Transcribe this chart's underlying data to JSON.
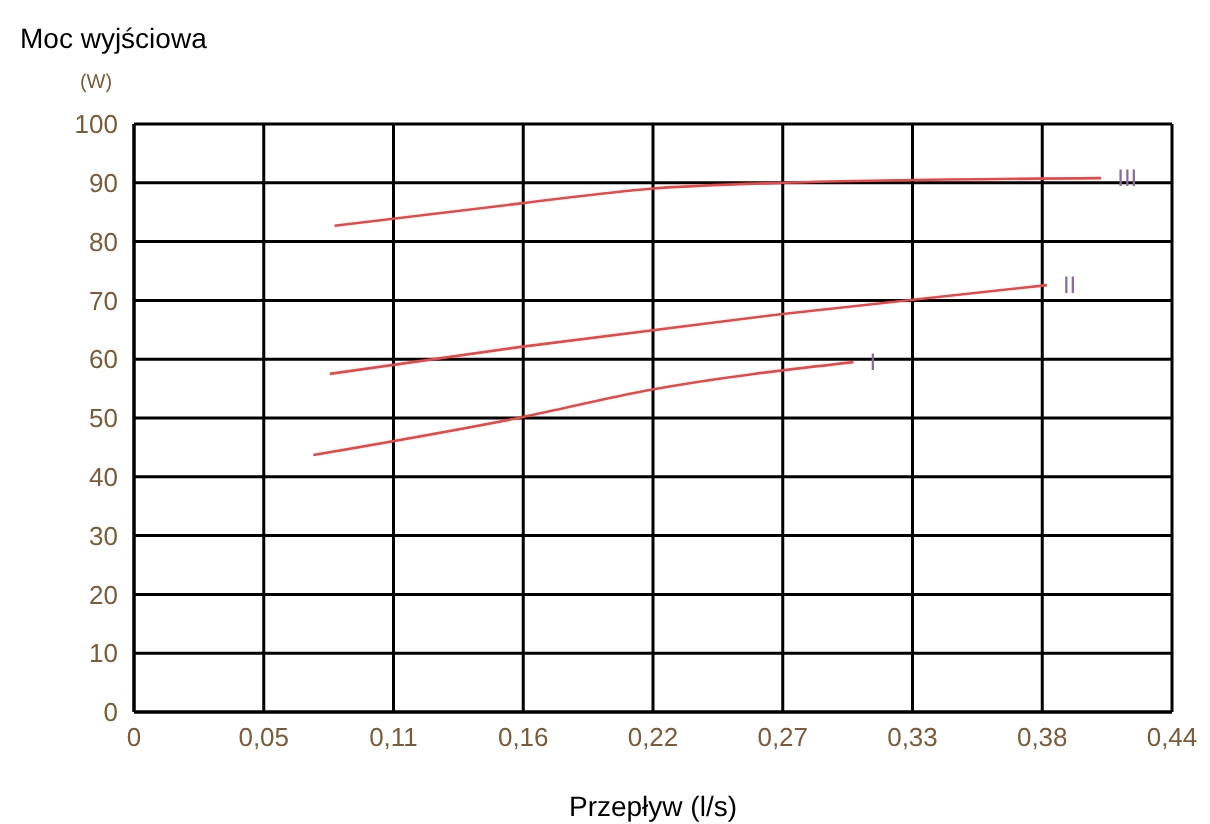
{
  "chart_data": {
    "type": "line",
    "xlabel": "Przepływ (l/s)",
    "ylabel": "Moc wyjściowa\n(W)",
    "xlim": [
      0,
      0.44
    ],
    "ylim": [
      0,
      100
    ],
    "xticks": [
      0,
      {
        "value": 0.055,
        "label": "0,05"
      },
      {
        "value": 0.11,
        "label": "0,11"
      },
      {
        "value": 0.165,
        "label": "0,16"
      },
      {
        "value": 0.22,
        "label": "0,22"
      },
      {
        "value": 0.275,
        "label": "0,27"
      },
      {
        "value": 0.33,
        "label": "0,33"
      },
      {
        "value": 0.385,
        "label": "0,38"
      },
      {
        "value": 0.44,
        "label": "0,44"
      }
    ],
    "yticks": [
      0,
      10,
      20,
      30,
      40,
      50,
      60,
      70,
      80,
      90,
      100
    ],
    "grid": true,
    "legend": false,
    "marker": "none",
    "line_style": "solid",
    "series": [
      {
        "name": "I",
        "color": "#e84848",
        "x": [
          0.076,
          0.164,
          0.219,
          0.305
        ],
        "values": [
          43.7,
          50.1,
          54.8,
          59.5
        ]
      },
      {
        "name": "II",
        "color": "#e84848",
        "x": [
          0.083,
          0.164,
          0.275,
          0.387
        ],
        "values": [
          57.5,
          62.1,
          67.7,
          72.6
        ]
      },
      {
        "name": "III",
        "color": "#e84848",
        "x": [
          0.085,
          0.164,
          0.219,
          0.275,
          0.41
        ],
        "values": [
          82.7,
          86.5,
          89,
          90,
          90.8
        ]
      }
    ]
  }
}
